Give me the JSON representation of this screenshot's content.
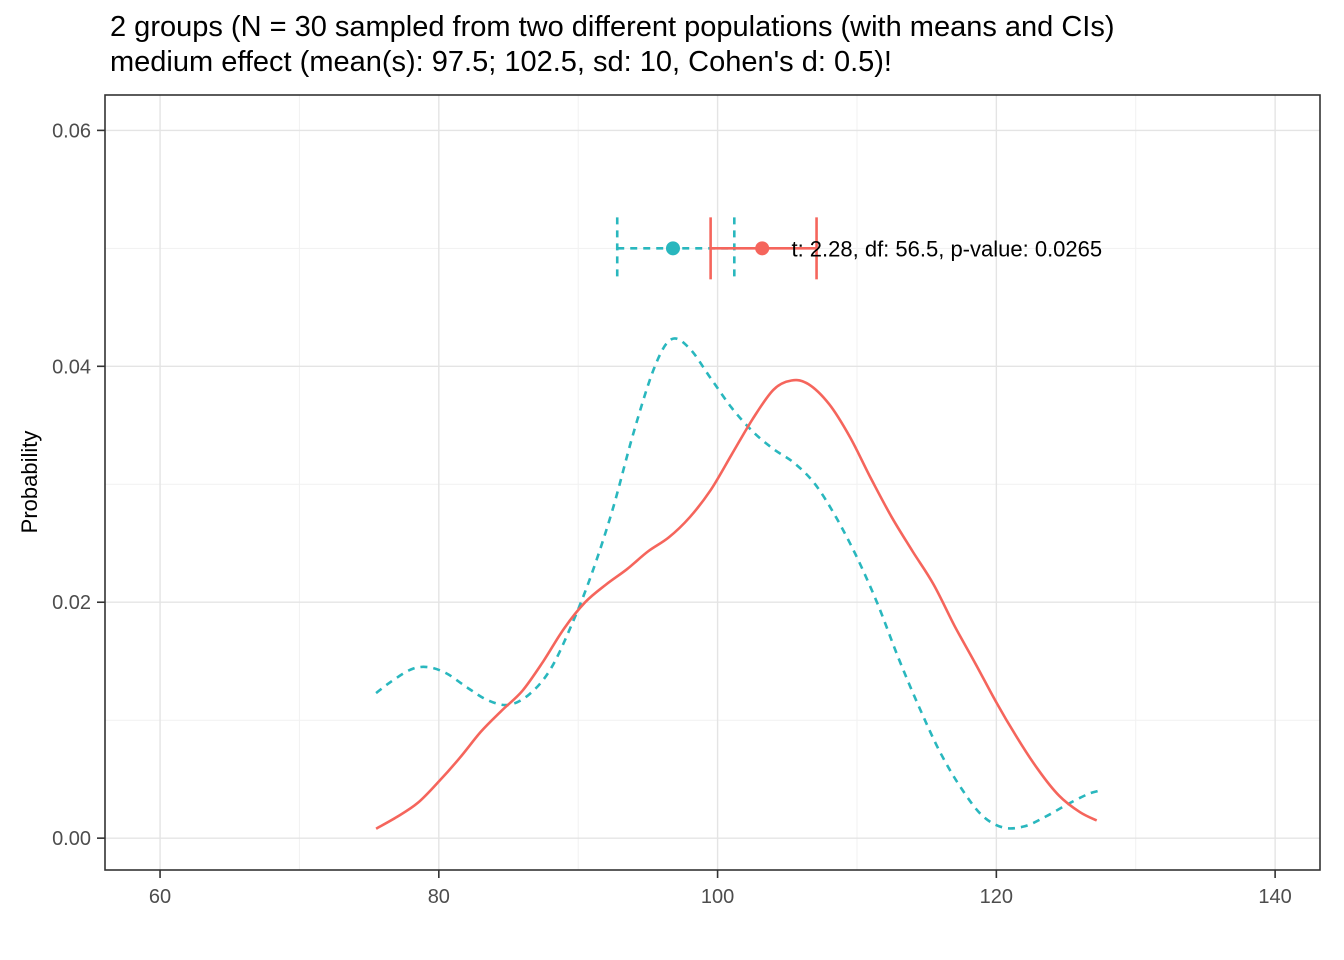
{
  "title": {
    "line1": "2 groups (N = 30 sampled from two different populations (with means and CIs)",
    "line2": "medium effect (mean(s): 97.5; 102.5, sd: 10, Cohen's d: 0.5)!"
  },
  "chart_data": {
    "type": "line",
    "title": "2 groups (N = 30 sampled from two different populations (with means and CIs) medium effect (mean(s): 97.5; 102.5, sd: 10, Cohen's d: 0.5)!",
    "xlabel": "",
    "ylabel": "Probability",
    "xlim": [
      56.05,
      143.22
    ],
    "ylim": [
      -0.0027,
      0.063
    ],
    "grid": true,
    "x_ticks": [
      60,
      80,
      100,
      120,
      140
    ],
    "x_tick_labels": [
      "60",
      "80",
      "100",
      "120",
      "140"
    ],
    "x_minor_ticks": [
      70,
      90,
      110,
      130
    ],
    "y_ticks": [
      0.0,
      0.02,
      0.04,
      0.06
    ],
    "y_tick_labels": [
      "0.00",
      "0.02",
      "0.04",
      "0.06"
    ],
    "y_minor_ticks": [
      0.01,
      0.03,
      0.05
    ],
    "colors": {
      "group1": "#29B7BE",
      "group2": "#F5655C",
      "grid_major": "#E4E4E4",
      "grid_minor": "#F1F1F1",
      "panel_border": "#333333",
      "tick_label": "#4d4d4d",
      "annotation_text": "#000000"
    },
    "series": [
      {
        "name": "group-1-density",
        "color": "#29B7BE",
        "linetype": "dashed",
        "points": [
          [
            75.5,
            0.0123
          ],
          [
            76.5,
            0.0132
          ],
          [
            78.0,
            0.0143
          ],
          [
            79.2,
            0.0145
          ],
          [
            80.5,
            0.014
          ],
          [
            82.0,
            0.0128
          ],
          [
            83.5,
            0.0117
          ],
          [
            85.0,
            0.0113
          ],
          [
            86.5,
            0.0122
          ],
          [
            88.0,
            0.0143
          ],
          [
            89.5,
            0.018
          ],
          [
            91.0,
            0.0225
          ],
          [
            92.5,
            0.028
          ],
          [
            94.0,
            0.0345
          ],
          [
            95.5,
            0.04
          ],
          [
            96.7,
            0.0423
          ],
          [
            98.0,
            0.0415
          ],
          [
            99.5,
            0.039
          ],
          [
            101.0,
            0.0365
          ],
          [
            102.5,
            0.0345
          ],
          [
            104.0,
            0.033
          ],
          [
            105.5,
            0.0318
          ],
          [
            107.0,
            0.03
          ],
          [
            108.5,
            0.0272
          ],
          [
            110.0,
            0.0238
          ],
          [
            111.5,
            0.0198
          ],
          [
            113.0,
            0.0152
          ],
          [
            114.5,
            0.011
          ],
          [
            116.0,
            0.0072
          ],
          [
            117.5,
            0.0042
          ],
          [
            119.0,
            0.0019
          ],
          [
            120.5,
            0.0009
          ],
          [
            122.0,
            0.001
          ],
          [
            123.5,
            0.0018
          ],
          [
            125.0,
            0.0028
          ],
          [
            126.5,
            0.0037
          ],
          [
            127.3,
            0.004
          ]
        ]
      },
      {
        "name": "group-2-density",
        "color": "#F5655C",
        "linetype": "solid",
        "points": [
          [
            75.5,
            0.0008
          ],
          [
            77.0,
            0.0018
          ],
          [
            78.5,
            0.003
          ],
          [
            80.0,
            0.0048
          ],
          [
            81.5,
            0.0068
          ],
          [
            83.0,
            0.009
          ],
          [
            84.5,
            0.0108
          ],
          [
            86.0,
            0.0125
          ],
          [
            87.5,
            0.015
          ],
          [
            89.0,
            0.0178
          ],
          [
            90.5,
            0.02
          ],
          [
            92.0,
            0.0215
          ],
          [
            93.5,
            0.0228
          ],
          [
            95.0,
            0.0243
          ],
          [
            96.5,
            0.0255
          ],
          [
            98.0,
            0.0272
          ],
          [
            99.5,
            0.0295
          ],
          [
            101.0,
            0.0325
          ],
          [
            102.5,
            0.0355
          ],
          [
            104.0,
            0.038
          ],
          [
            105.3,
            0.0388
          ],
          [
            106.5,
            0.0385
          ],
          [
            108.0,
            0.0368
          ],
          [
            109.5,
            0.034
          ],
          [
            111.0,
            0.0305
          ],
          [
            112.5,
            0.0272
          ],
          [
            114.0,
            0.0243
          ],
          [
            115.5,
            0.0215
          ],
          [
            117.0,
            0.018
          ],
          [
            118.5,
            0.0148
          ],
          [
            120.0,
            0.0115
          ],
          [
            121.5,
            0.0085
          ],
          [
            123.0,
            0.0058
          ],
          [
            124.5,
            0.0036
          ],
          [
            126.0,
            0.0022
          ],
          [
            127.2,
            0.0015
          ]
        ]
      }
    ],
    "error_bars": [
      {
        "name": "group-1-ci",
        "color": "#29B7BE",
        "linetype": "dashed",
        "y": 0.05,
        "xmin": 92.8,
        "xmax": 101.2,
        "point": 96.8
      },
      {
        "name": "group-2-ci",
        "color": "#F5655C",
        "linetype": "solid",
        "y": 0.05,
        "xmin": 99.5,
        "xmax": 107.1,
        "point": 103.2
      }
    ],
    "annotation": {
      "text": "t: 2.28, df: 56.5, p-value: 0.0265",
      "x": 105.3,
      "y": 0.05
    },
    "legend_position": "none"
  }
}
